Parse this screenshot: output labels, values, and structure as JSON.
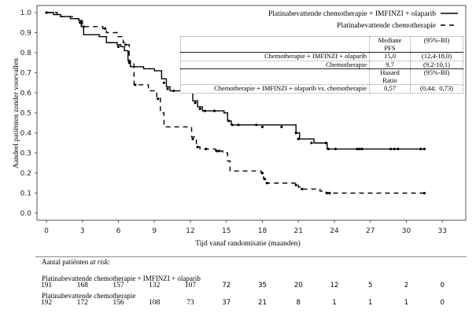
{
  "chart_data": {
    "type": "line",
    "subtype": "kaplan-meier",
    "xlabel": "Tijd vanaf randomisatie (maanden)",
    "ylabel": "Aandeel patiënten zonder voorvallen",
    "xlim": [
      -1,
      34.5
    ],
    "ylim": [
      -0.04,
      1.03
    ],
    "xticks": [
      0,
      3,
      6,
      9,
      12,
      15,
      18,
      21,
      24,
      27,
      30,
      33
    ],
    "yticks": [
      "0.0",
      "0.1",
      "0.2",
      "0.3",
      "0.4",
      "0.5",
      "0.6",
      "0.7",
      "0.8",
      "0.9",
      "1.0"
    ],
    "legend_position": "top-right",
    "series": [
      {
        "name": "Platinabevattende chemotherapie + IMFINZI + olaparib",
        "style": "solid",
        "steps": [
          [
            0,
            1.0
          ],
          [
            0.6,
            0.99
          ],
          [
            1.2,
            0.98
          ],
          [
            2.0,
            0.97
          ],
          [
            2.7,
            0.96
          ],
          [
            2.9,
            0.93
          ],
          [
            3.1,
            0.89
          ],
          [
            4.4,
            0.88
          ],
          [
            5.0,
            0.85
          ],
          [
            5.9,
            0.84
          ],
          [
            6.2,
            0.83
          ],
          [
            6.5,
            0.81
          ],
          [
            6.8,
            0.76
          ],
          [
            7.0,
            0.73
          ],
          [
            8.1,
            0.72
          ],
          [
            9.0,
            0.71
          ],
          [
            9.6,
            0.67
          ],
          [
            10.0,
            0.63
          ],
          [
            10.3,
            0.61
          ],
          [
            11.2,
            0.6
          ],
          [
            12.0,
            0.6
          ],
          [
            12.2,
            0.56
          ],
          [
            12.6,
            0.53
          ],
          [
            13.0,
            0.51
          ],
          [
            14.8,
            0.5
          ],
          [
            15.1,
            0.46
          ],
          [
            15.4,
            0.44
          ],
          [
            16.3,
            0.44
          ],
          [
            20.6,
            0.44
          ],
          [
            20.8,
            0.4
          ],
          [
            21.1,
            0.37
          ],
          [
            22.3,
            0.35
          ],
          [
            23.2,
            0.35
          ],
          [
            23.4,
            0.32
          ],
          [
            31.6,
            0.32
          ]
        ],
        "censor": [
          [
            0,
            1.0
          ],
          [
            2.8,
            0.95
          ],
          [
            6.0,
            0.83
          ],
          [
            6.9,
            0.75
          ],
          [
            9.8,
            0.65
          ],
          [
            10.1,
            0.62
          ],
          [
            10.6,
            0.61
          ],
          [
            12.4,
            0.55
          ],
          [
            12.8,
            0.52
          ],
          [
            13.2,
            0.51
          ],
          [
            14.0,
            0.51
          ],
          [
            15.2,
            0.46
          ],
          [
            15.5,
            0.44
          ],
          [
            16.0,
            0.44
          ],
          [
            17.5,
            0.44
          ],
          [
            18.0,
            0.43
          ],
          [
            19.6,
            0.43
          ],
          [
            20.8,
            0.4
          ],
          [
            21.0,
            0.37
          ],
          [
            22.1,
            0.35
          ],
          [
            23.3,
            0.35
          ],
          [
            23.5,
            0.32
          ],
          [
            24.1,
            0.32
          ],
          [
            25.9,
            0.32
          ],
          [
            26.1,
            0.32
          ],
          [
            26.3,
            0.32
          ],
          [
            28.7,
            0.32
          ],
          [
            29.0,
            0.32
          ],
          [
            29.3,
            0.32
          ],
          [
            31.2,
            0.32
          ],
          [
            31.5,
            0.32
          ]
        ]
      },
      {
        "name": "Platinabevattende chemotherapie",
        "style": "dashed",
        "steps": [
          [
            0,
            1.0
          ],
          [
            0.9,
            0.98
          ],
          [
            2.3,
            0.97
          ],
          [
            2.7,
            0.96
          ],
          [
            3.0,
            0.93
          ],
          [
            4.7,
            0.92
          ],
          [
            5.0,
            0.9
          ],
          [
            5.9,
            0.88
          ],
          [
            6.4,
            0.85
          ],
          [
            6.7,
            0.84
          ],
          [
            6.9,
            0.75
          ],
          [
            7.3,
            0.64
          ],
          [
            8.5,
            0.61
          ],
          [
            9.2,
            0.58
          ],
          [
            9.5,
            0.5
          ],
          [
            9.8,
            0.43
          ],
          [
            11.6,
            0.43
          ],
          [
            12.1,
            0.38
          ],
          [
            12.5,
            0.33
          ],
          [
            12.8,
            0.32
          ],
          [
            14.1,
            0.31
          ],
          [
            14.7,
            0.3
          ],
          [
            15.1,
            0.26
          ],
          [
            15.3,
            0.21
          ],
          [
            17.9,
            0.2
          ],
          [
            18.1,
            0.17
          ],
          [
            18.3,
            0.15
          ],
          [
            20.6,
            0.15
          ],
          [
            21.0,
            0.13
          ],
          [
            21.3,
            0.12
          ],
          [
            22.8,
            0.11
          ],
          [
            23.3,
            0.1
          ],
          [
            31.6,
            0.1
          ]
        ],
        "censor": [
          [
            0,
            1.0
          ],
          [
            3.1,
            0.93
          ],
          [
            4.9,
            0.92
          ],
          [
            6.6,
            0.84
          ],
          [
            7.4,
            0.64
          ],
          [
            9.3,
            0.57
          ],
          [
            12.2,
            0.37
          ],
          [
            12.6,
            0.33
          ],
          [
            13.3,
            0.32
          ],
          [
            14.2,
            0.31
          ],
          [
            14.4,
            0.31
          ],
          [
            18.0,
            0.2
          ],
          [
            18.2,
            0.17
          ],
          [
            18.4,
            0.15
          ],
          [
            20.8,
            0.14
          ],
          [
            21.3,
            0.12
          ],
          [
            23.4,
            0.1
          ],
          [
            23.6,
            0.1
          ],
          [
            31.5,
            0.1
          ]
        ]
      }
    ]
  },
  "legend": {
    "solid_label": "Platinabevattende chemotherapie + IMFINZI + olaparib",
    "dashed_label": "Platinabevattende chemotherapie"
  },
  "stats_table": {
    "header1": {
      "col1": "Mediane",
      "col1b": "PFS",
      "col2": "(95%-BI)"
    },
    "rows1": [
      {
        "label": "Chemotherapie + IMFINZI + olaparib",
        "value": "15,0",
        "ci": "(12,4-18,0)"
      },
      {
        "label": "Chemotherapie",
        "value": "9,7",
        "ci": "(9,2-10,1)"
      }
    ],
    "header2": {
      "col1": "Hazard",
      "col1b": "Ratio",
      "col2": "(95%-BI)"
    },
    "rows2": [
      {
        "label": "Chemotherapie + IMFINZI + olaparib vs. chemotherapie",
        "value": "0,57",
        "ci": "(0,44;  0,73)"
      }
    ]
  },
  "at_risk": {
    "title": "Aantal patiënten",
    "title_italic": "at risk",
    "title_suffix": ":",
    "times": [
      0,
      3,
      6,
      9,
      12,
      15,
      18,
      21,
      24,
      27,
      30,
      33
    ],
    "groups": [
      {
        "label": "Platinabevattende chemotherapie + IMFINZI + olaparib",
        "counts": [
          "191",
          "168",
          "157",
          "132",
          "107",
          "72",
          "35",
          "20",
          "12",
          "5",
          "2",
          "0"
        ]
      },
      {
        "label": "Platinabevattende chemotherapie",
        "counts": [
          "192",
          "172",
          "156",
          "108",
          "73",
          "37",
          "21",
          "8",
          "1",
          "1",
          "1",
          "0"
        ]
      }
    ]
  }
}
